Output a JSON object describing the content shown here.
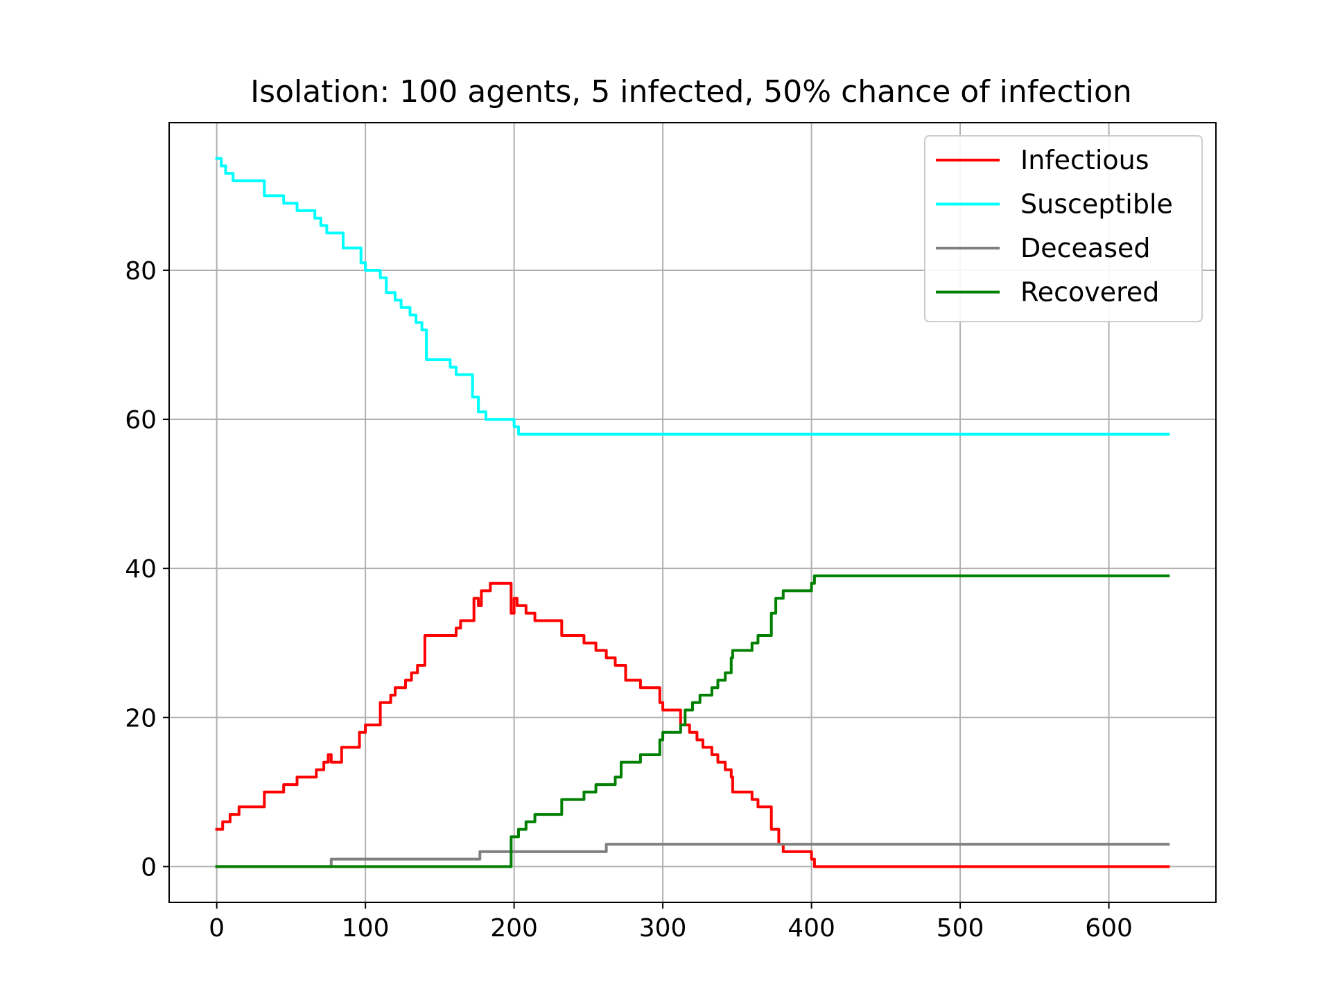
{
  "chart_data": {
    "type": "line",
    "title": "Isolation: 100 agents, 5 infected, 50% chance of infection",
    "xlabel": "",
    "ylabel": "",
    "xlim": [
      -32,
      672
    ],
    "ylim": [
      -4.8,
      99.8
    ],
    "xticks": [
      0,
      100,
      200,
      300,
      400,
      500,
      600
    ],
    "yticks": [
      0,
      20,
      40,
      60,
      80
    ],
    "grid": true,
    "legend_position": "top-right",
    "series": [
      {
        "name": "Infectious",
        "color": "#ff0000",
        "points": [
          [
            0,
            5
          ],
          [
            4,
            5
          ],
          [
            4,
            6
          ],
          [
            9,
            6
          ],
          [
            9,
            7
          ],
          [
            15,
            7
          ],
          [
            15,
            8
          ],
          [
            32,
            8
          ],
          [
            32,
            10
          ],
          [
            45,
            10
          ],
          [
            45,
            11
          ],
          [
            54,
            11
          ],
          [
            54,
            12
          ],
          [
            67,
            12
          ],
          [
            67,
            13
          ],
          [
            72,
            13
          ],
          [
            72,
            14
          ],
          [
            75,
            14
          ],
          [
            75,
            15
          ],
          [
            77,
            15
          ],
          [
            77,
            14
          ],
          [
            84,
            14
          ],
          [
            84,
            16
          ],
          [
            96,
            16
          ],
          [
            96,
            18
          ],
          [
            100,
            18
          ],
          [
            100,
            19
          ],
          [
            110,
            19
          ],
          [
            110,
            22
          ],
          [
            117,
            22
          ],
          [
            117,
            23
          ],
          [
            120,
            23
          ],
          [
            120,
            24
          ],
          [
            127,
            24
          ],
          [
            127,
            25
          ],
          [
            131,
            25
          ],
          [
            131,
            26
          ],
          [
            135,
            26
          ],
          [
            135,
            27
          ],
          [
            140,
            27
          ],
          [
            140,
            31
          ],
          [
            148,
            31
          ],
          [
            148,
            31
          ],
          [
            161,
            31
          ],
          [
            161,
            32
          ],
          [
            164,
            32
          ],
          [
            164,
            33
          ],
          [
            173,
            33
          ],
          [
            173,
            36
          ],
          [
            176,
            36
          ],
          [
            176,
            35
          ],
          [
            178,
            35
          ],
          [
            178,
            37
          ],
          [
            184,
            37
          ],
          [
            184,
            38
          ],
          [
            198,
            38
          ],
          [
            198,
            34
          ],
          [
            200,
            34
          ],
          [
            200,
            36
          ],
          [
            202,
            36
          ],
          [
            202,
            35
          ],
          [
            208,
            35
          ],
          [
            208,
            34
          ],
          [
            214,
            34
          ],
          [
            214,
            33
          ],
          [
            232,
            33
          ],
          [
            232,
            31
          ],
          [
            247,
            31
          ],
          [
            247,
            30
          ],
          [
            255,
            30
          ],
          [
            255,
            29
          ],
          [
            262,
            29
          ],
          [
            262,
            28
          ],
          [
            268,
            28
          ],
          [
            268,
            27
          ],
          [
            275,
            27
          ],
          [
            275,
            25
          ],
          [
            285,
            25
          ],
          [
            285,
            24
          ],
          [
            298,
            24
          ],
          [
            298,
            22
          ],
          [
            300,
            22
          ],
          [
            300,
            21
          ],
          [
            312,
            21
          ],
          [
            312,
            19
          ],
          [
            318,
            19
          ],
          [
            318,
            18
          ],
          [
            323,
            18
          ],
          [
            323,
            17
          ],
          [
            327,
            17
          ],
          [
            327,
            16
          ],
          [
            333,
            16
          ],
          [
            333,
            15
          ],
          [
            337,
            15
          ],
          [
            337,
            14
          ],
          [
            342,
            14
          ],
          [
            342,
            13
          ],
          [
            346,
            13
          ],
          [
            346,
            12
          ],
          [
            347,
            12
          ],
          [
            347,
            10
          ],
          [
            360,
            10
          ],
          [
            360,
            9
          ],
          [
            364,
            9
          ],
          [
            364,
            8
          ],
          [
            373,
            8
          ],
          [
            373,
            5
          ],
          [
            378,
            5
          ],
          [
            378,
            3
          ],
          [
            381,
            3
          ],
          [
            381,
            2
          ],
          [
            400,
            2
          ],
          [
            400,
            1
          ],
          [
            402,
            1
          ],
          [
            402,
            0
          ],
          [
            640,
            0
          ]
        ]
      },
      {
        "name": "Susceptible",
        "color": "#00ffff",
        "points": [
          [
            0,
            95
          ],
          [
            3,
            95
          ],
          [
            3,
            94
          ],
          [
            6,
            94
          ],
          [
            6,
            93
          ],
          [
            11,
            93
          ],
          [
            11,
            92
          ],
          [
            32,
            92
          ],
          [
            32,
            90
          ],
          [
            45,
            90
          ],
          [
            45,
            89
          ],
          [
            54,
            89
          ],
          [
            54,
            88
          ],
          [
            66,
            88
          ],
          [
            66,
            87
          ],
          [
            70,
            87
          ],
          [
            70,
            86
          ],
          [
            74,
            86
          ],
          [
            74,
            85
          ],
          [
            85,
            85
          ],
          [
            85,
            83
          ],
          [
            97,
            83
          ],
          [
            97,
            81
          ],
          [
            100,
            81
          ],
          [
            100,
            80
          ],
          [
            110,
            80
          ],
          [
            110,
            79
          ],
          [
            114,
            79
          ],
          [
            114,
            77
          ],
          [
            120,
            77
          ],
          [
            120,
            76
          ],
          [
            124,
            76
          ],
          [
            124,
            75
          ],
          [
            130,
            75
          ],
          [
            130,
            74
          ],
          [
            134,
            74
          ],
          [
            134,
            73
          ],
          [
            138,
            73
          ],
          [
            138,
            72
          ],
          [
            141,
            72
          ],
          [
            141,
            68
          ],
          [
            157,
            68
          ],
          [
            157,
            67
          ],
          [
            161,
            67
          ],
          [
            161,
            66
          ],
          [
            172,
            66
          ],
          [
            172,
            63
          ],
          [
            176,
            63
          ],
          [
            176,
            61
          ],
          [
            181,
            61
          ],
          [
            181,
            60
          ],
          [
            200,
            60
          ],
          [
            200,
            59
          ],
          [
            203,
            59
          ],
          [
            203,
            58
          ],
          [
            640,
            58
          ]
        ]
      },
      {
        "name": "Deceased",
        "color": "#808080",
        "points": [
          [
            0,
            0
          ],
          [
            77,
            0
          ],
          [
            77,
            1
          ],
          [
            177,
            1
          ],
          [
            177,
            2
          ],
          [
            262,
            2
          ],
          [
            262,
            3
          ],
          [
            640,
            3
          ]
        ]
      },
      {
        "name": "Recovered",
        "color": "#008000",
        "points": [
          [
            0,
            0
          ],
          [
            198,
            0
          ],
          [
            198,
            4
          ],
          [
            203,
            4
          ],
          [
            203,
            5
          ],
          [
            208,
            5
          ],
          [
            208,
            6
          ],
          [
            214,
            6
          ],
          [
            214,
            7
          ],
          [
            232,
            7
          ],
          [
            232,
            9
          ],
          [
            247,
            9
          ],
          [
            247,
            10
          ],
          [
            255,
            10
          ],
          [
            255,
            11
          ],
          [
            268,
            11
          ],
          [
            268,
            12
          ],
          [
            272,
            12
          ],
          [
            272,
            14
          ],
          [
            285,
            14
          ],
          [
            285,
            15
          ],
          [
            298,
            15
          ],
          [
            298,
            17
          ],
          [
            300,
            17
          ],
          [
            300,
            18
          ],
          [
            312,
            18
          ],
          [
            312,
            19
          ],
          [
            315,
            19
          ],
          [
            315,
            21
          ],
          [
            320,
            21
          ],
          [
            320,
            22
          ],
          [
            325,
            22
          ],
          [
            325,
            23
          ],
          [
            333,
            23
          ],
          [
            333,
            24
          ],
          [
            337,
            24
          ],
          [
            337,
            25
          ],
          [
            342,
            25
          ],
          [
            342,
            26
          ],
          [
            346,
            26
          ],
          [
            346,
            28
          ],
          [
            347,
            28
          ],
          [
            347,
            29
          ],
          [
            360,
            29
          ],
          [
            360,
            30
          ],
          [
            364,
            30
          ],
          [
            364,
            31
          ],
          [
            373,
            31
          ],
          [
            373,
            34
          ],
          [
            376,
            34
          ],
          [
            376,
            36
          ],
          [
            381,
            36
          ],
          [
            381,
            37
          ],
          [
            400,
            37
          ],
          [
            400,
            38
          ],
          [
            402,
            38
          ],
          [
            402,
            39
          ],
          [
            640,
            39
          ]
        ]
      }
    ]
  }
}
